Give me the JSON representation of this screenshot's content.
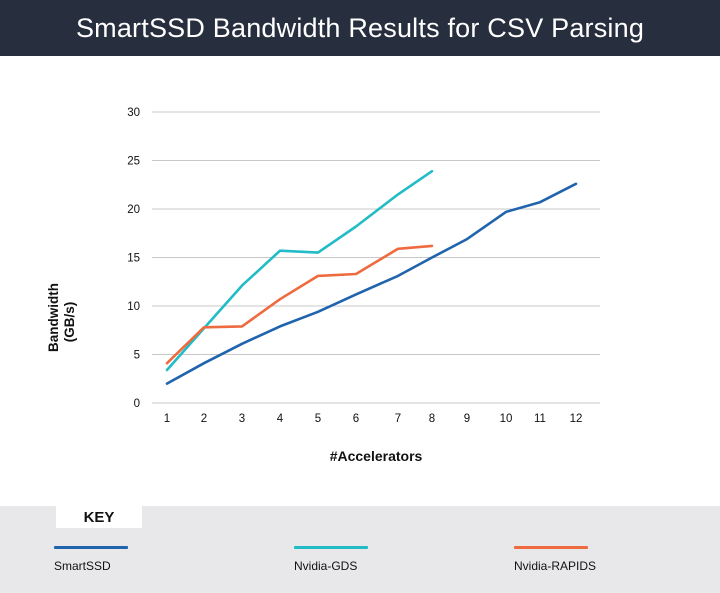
{
  "header": {
    "title": "SmartSSD Bandwidth Results for CSV Parsing"
  },
  "colors": {
    "header_bg": "#272e3d",
    "grid": "#c8c8c8",
    "key_bg": "#e8e8ea"
  },
  "chart_data": {
    "type": "line",
    "title": "SmartSSD Bandwidth Results for CSV Parsing",
    "xlabel": "#Accelerators",
    "ylabel_lines": [
      "Bandwidth",
      "(GB/s)"
    ],
    "categories": [
      "1",
      "2",
      "3",
      "4",
      "5",
      "6",
      "7",
      "8",
      "9",
      "10",
      "11",
      "12"
    ],
    "yticks": [
      "0",
      "5",
      "10",
      "15",
      "20",
      "25",
      "30"
    ],
    "ylim": [
      0,
      30
    ],
    "grid": true,
    "legend_title": "KEY",
    "legend_position": "bottom",
    "series": [
      {
        "name": "SmartSSD",
        "color": "#1f64ad",
        "values": [
          2.0,
          4.1,
          6.1,
          7.9,
          9.4,
          11.2,
          13.1,
          15.0,
          16.9,
          19.7,
          20.7,
          22.6
        ]
      },
      {
        "name": "Nvidia-GDS",
        "color": "#22bcc6",
        "values": [
          3.4,
          7.7,
          12.1,
          15.7,
          15.5,
          18.2,
          21.5,
          23.9,
          null,
          null,
          null,
          null
        ]
      },
      {
        "name": "Nvidia-RAPIDS",
        "color": "#ee6a3f",
        "values": [
          4.1,
          7.8,
          7.9,
          10.7,
          13.1,
          13.3,
          15.9,
          16.2,
          null,
          null,
          null,
          null
        ]
      }
    ]
  }
}
